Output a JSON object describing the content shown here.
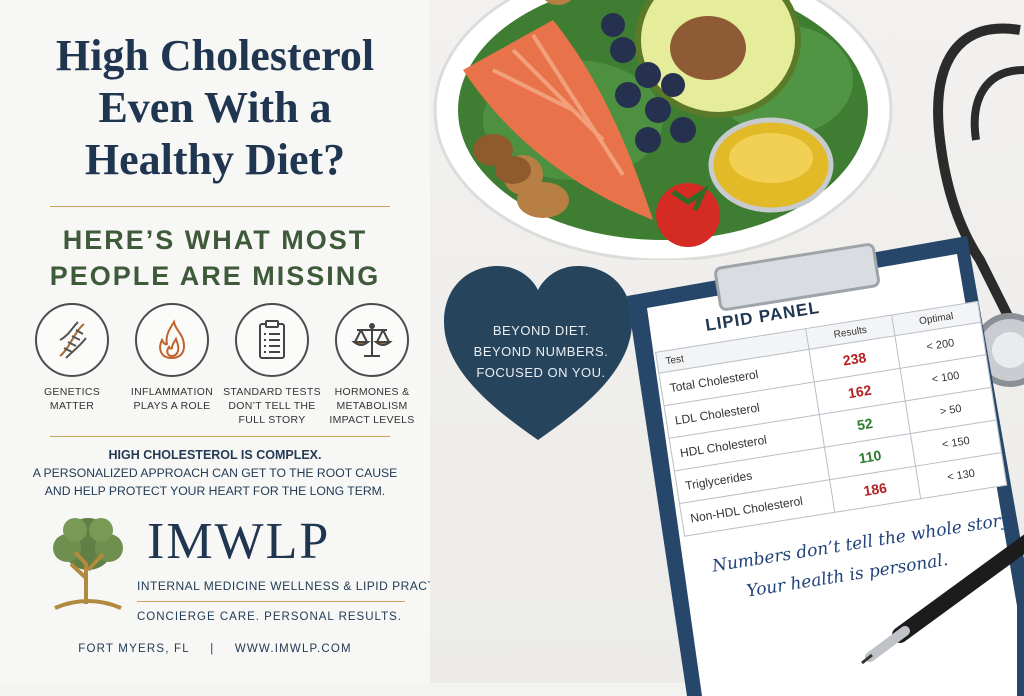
{
  "title_lines": [
    "High Cholesterol",
    "Even With a",
    "Healthy Diet?"
  ],
  "subhead_lines": [
    "HERE’S WHAT MOST",
    "PEOPLE ARE MISSING"
  ],
  "features": [
    {
      "icon": "dna-icon",
      "label_lines": [
        "GENETICS",
        "MATTER"
      ]
    },
    {
      "icon": "flame-icon",
      "label_lines": [
        "INFLAMMATION",
        "PLAYS A ROLE"
      ]
    },
    {
      "icon": "clipboard-icon",
      "label_lines": [
        "STANDARD TESTS",
        "DON’T TELL THE",
        "FULL STORY"
      ]
    },
    {
      "icon": "scales-icon",
      "label_lines": [
        "HORMONES &",
        "METABOLISM",
        "IMPACT LEVELS"
      ]
    }
  ],
  "message": {
    "line1": "HIGH CHOLESTEROL IS COMPLEX.",
    "line2": "A PERSONALIZED APPROACH CAN GET TO THE ROOT CAUSE",
    "line3": "AND HELP PROTECT YOUR HEART FOR THE LONG TERM."
  },
  "brand": {
    "name": "IMWLP",
    "practice": "INTERNAL MEDICINE WELLNESS & LIPID PRACTICE",
    "tagline": "CONCIERGE CARE.  PERSONAL RESULTS.",
    "location": "FORT MYERS, FL",
    "separator": "|",
    "website": "WWW.IMWLP.COM"
  },
  "heart_text": [
    "BEYOND DIET.",
    "BEYOND NUMBERS.",
    "FOCUSED ON YOU."
  ],
  "lipid_panel": {
    "title": "LIPID PANEL",
    "headers": {
      "test": "Test",
      "results": "Results",
      "optimal": "Optimal"
    },
    "rows": [
      {
        "test": "Total Cholesterol",
        "result": "238",
        "optimal": "< 200",
        "status": "high"
      },
      {
        "test": "LDL Cholesterol",
        "result": "162",
        "optimal": "< 100",
        "status": "high"
      },
      {
        "test": "HDL Cholesterol",
        "result": "52",
        "optimal": "> 50",
        "status": "ok"
      },
      {
        "test": "Triglycerides",
        "result": "110",
        "optimal": "< 150",
        "status": "ok"
      },
      {
        "test": "Non-HDL Cholesterol",
        "result": "186",
        "optimal": "< 130",
        "status": "high"
      }
    ]
  },
  "handwritten_note": [
    "Numbers don’t tell the whole story.",
    "Your health is personal."
  ],
  "colors": {
    "navy": "#1f3550",
    "gold": "#c9a45c",
    "green": "#3f5a3a",
    "high": "#b32121",
    "ok": "#2c7a2c"
  }
}
